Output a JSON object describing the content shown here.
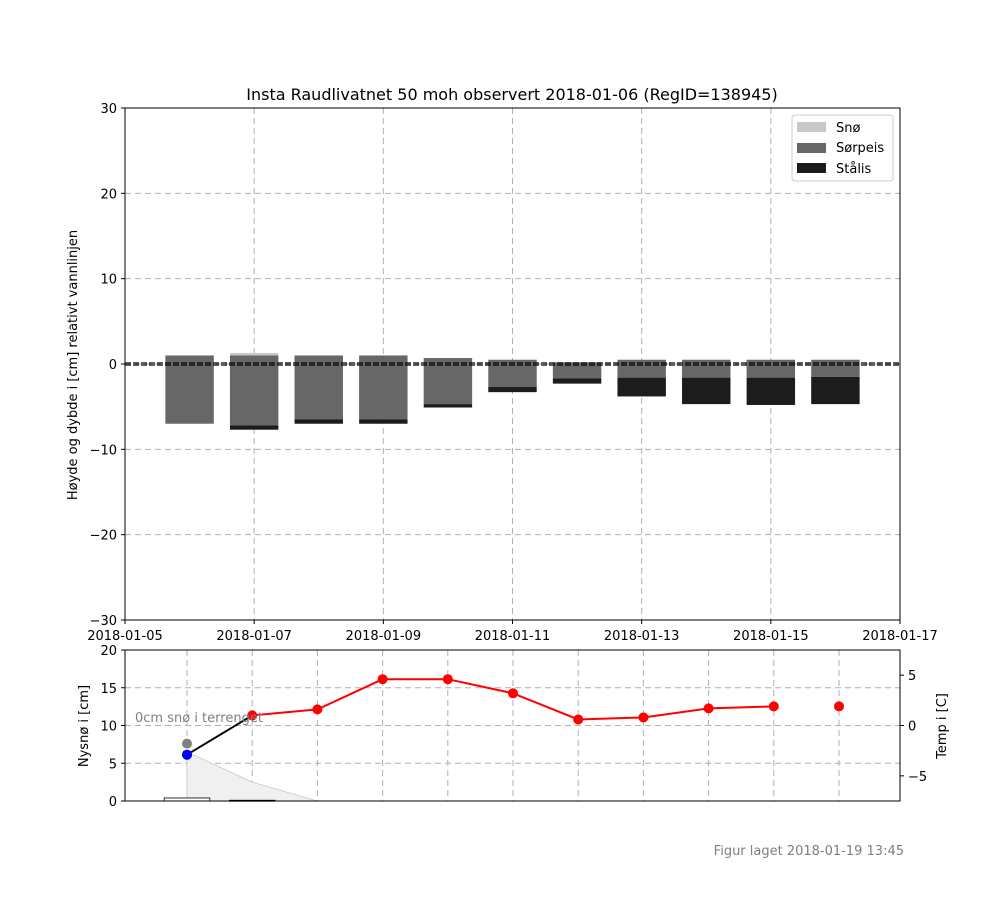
{
  "chart_data": [
    {
      "type": "bar",
      "title": "Insta Raudlivatnet 50 moh observert 2018-01-06 (RegID=138945)",
      "xlabel": "",
      "ylabel": "Høyde og dybde i [cm] relativt vannlinjen",
      "xlim": [
        "2018-01-05",
        "2018-01-17"
      ],
      "ylim": [
        -30,
        30
      ],
      "x_ticks": [
        "2018-01-05",
        "2018-01-07",
        "2018-01-09",
        "2018-01-11",
        "2018-01-13",
        "2018-01-15",
        "2018-01-17"
      ],
      "y_ticks": [
        -30,
        -20,
        -10,
        0,
        10,
        20,
        30
      ],
      "grid": true,
      "legend_position": "top-right",
      "legend": [
        "Snø",
        "Sørpeis",
        "Stålis"
      ],
      "colors": {
        "Snø": "#c8c8c8",
        "Sørpeis": "#676767",
        "Stålis": "#1c1c1c"
      },
      "bars": [
        {
          "date": "2018-01-06",
          "layers": [
            {
              "type": "Sørpeis",
              "top": 1.0,
              "bottom": -7.0
            }
          ]
        },
        {
          "date": "2018-01-07",
          "layers": [
            {
              "type": "Snø",
              "top": 1.3,
              "bottom": 1.0
            },
            {
              "type": "Sørpeis",
              "top": 1.0,
              "bottom": -7.2
            },
            {
              "type": "Stålis",
              "top": -7.2,
              "bottom": -7.7
            }
          ]
        },
        {
          "date": "2018-01-08",
          "layers": [
            {
              "type": "Sørpeis",
              "top": 1.0,
              "bottom": -6.5
            },
            {
              "type": "Stålis",
              "top": -6.5,
              "bottom": -7.0
            }
          ]
        },
        {
          "date": "2018-01-09",
          "layers": [
            {
              "type": "Sørpeis",
              "top": 1.0,
              "bottom": -6.5
            },
            {
              "type": "Stålis",
              "top": -6.5,
              "bottom": -7.0
            }
          ]
        },
        {
          "date": "2018-01-10",
          "layers": [
            {
              "type": "Sørpeis",
              "top": 0.7,
              "bottom": -4.7
            },
            {
              "type": "Stålis",
              "top": -4.7,
              "bottom": -5.1
            }
          ]
        },
        {
          "date": "2018-01-11",
          "layers": [
            {
              "type": "Sørpeis",
              "top": 0.5,
              "bottom": -2.7
            },
            {
              "type": "Stålis",
              "top": -2.7,
              "bottom": -3.3
            }
          ]
        },
        {
          "date": "2018-01-12",
          "layers": [
            {
              "type": "Sørpeis",
              "top": 0.2,
              "bottom": -1.7
            },
            {
              "type": "Stålis",
              "top": -1.7,
              "bottom": -2.3
            }
          ]
        },
        {
          "date": "2018-01-13",
          "layers": [
            {
              "type": "Sørpeis",
              "top": 0.5,
              "bottom": -1.6
            },
            {
              "type": "Stålis",
              "top": -1.6,
              "bottom": -3.8
            }
          ]
        },
        {
          "date": "2018-01-14",
          "layers": [
            {
              "type": "Sørpeis",
              "top": 0.5,
              "bottom": -1.6
            },
            {
              "type": "Stålis",
              "top": -1.6,
              "bottom": -4.7
            }
          ]
        },
        {
          "date": "2018-01-15",
          "layers": [
            {
              "type": "Sørpeis",
              "top": 0.5,
              "bottom": -1.6
            },
            {
              "type": "Stålis",
              "top": -1.6,
              "bottom": -4.8
            }
          ]
        },
        {
          "date": "2018-01-16",
          "layers": [
            {
              "type": "Sørpeis",
              "top": 0.5,
              "bottom": -1.5
            },
            {
              "type": "Stålis",
              "top": -1.5,
              "bottom": -4.7
            }
          ]
        }
      ],
      "water_line": 0
    },
    {
      "type": "line",
      "ylabel_left": "Nysnø i [cm]",
      "ylabel_right": "Temp i [C]",
      "ylim_left": [
        0,
        20
      ],
      "ylim_right": [
        -7.5,
        7.5
      ],
      "y_ticks_left": [
        0,
        5,
        10,
        15,
        20
      ],
      "y_ticks_right": [
        -5,
        0,
        5
      ],
      "grid": true,
      "annotation": "0cm snø i terrenget",
      "x": [
        "2018-01-06",
        "2018-01-07",
        "2018-01-08",
        "2018-01-09",
        "2018-01-10",
        "2018-01-11",
        "2018-01-12",
        "2018-01-13",
        "2018-01-14",
        "2018-01-15",
        "2018-01-16"
      ],
      "series": [
        {
          "axis": "right",
          "color": "#ff0000",
          "values": [
            null,
            1.0,
            1.6,
            4.6,
            4.6,
            3.2,
            0.6,
            0.8,
            1.7,
            1.9,
            null
          ]
        },
        {
          "axis": "right",
          "color": "#000000",
          "values": [
            -2.9,
            1.0,
            null,
            null,
            null,
            null,
            null,
            null,
            null,
            null,
            null
          ]
        },
        {
          "axis": "right",
          "color": "#0000ff",
          "values": [
            -2.9,
            null,
            null,
            null,
            null,
            null,
            null,
            null,
            null,
            null,
            null
          ]
        },
        {
          "axis": "right",
          "color": "#808080",
          "values": [
            -1.8,
            null,
            null,
            null,
            null,
            null,
            null,
            null,
            null,
            null,
            null
          ]
        },
        {
          "axis": "right",
          "color": "#ff0000",
          "values": [
            null,
            null,
            null,
            null,
            null,
            null,
            null,
            null,
            null,
            null,
            1.9
          ]
        }
      ],
      "snow_depth_area": {
        "color": "#f0f0f0",
        "x": [
          "2018-01-06",
          "2018-01-07",
          "2018-01-08"
        ],
        "values": [
          6.5,
          2.5,
          0
        ]
      },
      "new_snow_bars": [
        {
          "date": "2018-01-06",
          "value": 0.4
        },
        {
          "date": "2018-01-07",
          "value": 0.1
        }
      ]
    }
  ],
  "footer": "Figur laget 2018-01-19 13:45"
}
